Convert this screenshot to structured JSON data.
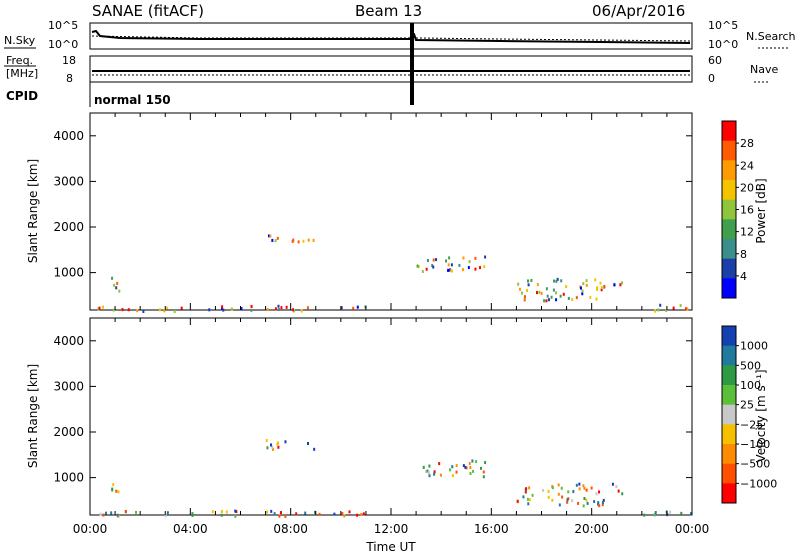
{
  "header": {
    "station": "SANAE (fitACF)",
    "beam": "Beam 13",
    "date": "06/Apr/2016"
  },
  "strip": {
    "left_top_label": "N.Sky",
    "left_top_ticks": [
      "10^5",
      "10^0"
    ],
    "right_top_ticks": [
      "10^5",
      "10^0"
    ],
    "right_top_label": "N.Search",
    "freq_label_1": "Freq.",
    "freq_label_2": "[MHz]",
    "freq_ticks": [
      "18",
      "8"
    ],
    "nave_ticks": [
      "60",
      "0"
    ],
    "nave_label": "Nave",
    "cpid_label": "CPID",
    "cpid_value": "normal 150"
  },
  "chart_data": [
    {
      "type": "heatmap",
      "name": "power",
      "ylabel": "Slant Range [km]",
      "yticks": [
        "4000",
        "3000",
        "2000",
        "1000"
      ],
      "ylim": [
        180,
        4500
      ],
      "xlim_hours": [
        0,
        24
      ],
      "colorbar_label": "Power [dB]",
      "colorbar_ticks": [
        "28",
        "24",
        "20",
        "16",
        "12",
        "8",
        "4"
      ],
      "colorbar_colors": [
        "#ff0000",
        "#ff5a00",
        "#ff9a00",
        "#f4c400",
        "#8fc53a",
        "#3f9f4d",
        "#3b8f8a",
        "#1a3fa8",
        "#0000ff"
      ],
      "echo_regions": [
        {
          "t0": 0.8,
          "t1": 1.3,
          "r0": 600,
          "r1": 950
        },
        {
          "t0": 7.0,
          "t1": 8.9,
          "r0": 1650,
          "r1": 1850
        },
        {
          "t0": 13.0,
          "t1": 15.8,
          "r0": 1050,
          "r1": 1400
        },
        {
          "t0": 17.0,
          "t1": 20.5,
          "r0": 400,
          "r1": 900
        },
        {
          "t0": 20.8,
          "t1": 21.3,
          "r0": 650,
          "r1": 950
        },
        {
          "t0": 22.0,
          "t1": 24.0,
          "r0": 180,
          "r1": 320
        },
        {
          "t0": 0.3,
          "t1": 11.0,
          "r0": 180,
          "r1": 300
        }
      ]
    },
    {
      "type": "heatmap",
      "name": "velocity",
      "ylabel": "Slant Range [km]",
      "yticks": [
        "4000",
        "3000",
        "2000",
        "1000"
      ],
      "ylim": [
        180,
        4500
      ],
      "xlim_hours": [
        0,
        24
      ],
      "xticks": [
        "00:00",
        "04:00",
        "08:00",
        "12:00",
        "16:00",
        "20:00",
        "00:00"
      ],
      "xlabel": "Time UT",
      "colorbar_label": "Velocity [m s⁻¹]",
      "colorbar_ticks": [
        "1000",
        "500",
        "100",
        "25",
        "−25",
        "−100",
        "−500",
        "−1000"
      ],
      "colorbar_colors": [
        "#1540b0",
        "#1f7a9e",
        "#2f9a45",
        "#5bbf3a",
        "#c8c8c8",
        "#f5c000",
        "#ff8c00",
        "#ff5000",
        "#ff0000"
      ],
      "echo_regions": [
        {
          "t0": 0.8,
          "t1": 1.3,
          "r0": 600,
          "r1": 950
        },
        {
          "t0": 7.0,
          "t1": 8.9,
          "r0": 1650,
          "r1": 1850
        },
        {
          "t0": 13.0,
          "t1": 15.8,
          "r0": 1050,
          "r1": 1400
        },
        {
          "t0": 17.0,
          "t1": 20.5,
          "r0": 400,
          "r1": 900
        },
        {
          "t0": 20.8,
          "t1": 21.3,
          "r0": 650,
          "r1": 950
        },
        {
          "t0": 22.0,
          "t1": 24.0,
          "r0": 180,
          "r1": 320
        },
        {
          "t0": 0.3,
          "t1": 11.0,
          "r0": 180,
          "r1": 300
        }
      ]
    }
  ]
}
